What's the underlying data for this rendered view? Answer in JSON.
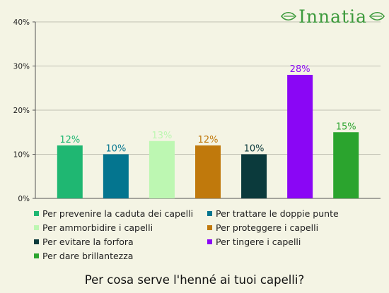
{
  "logo": {
    "text": "Innatia",
    "icon_left": "leaf-ornament-icon",
    "icon_right": "leaf-ornament-icon",
    "color": "#3c9a3c"
  },
  "chart_data": {
    "type": "bar",
    "title": "Per cosa serve l'henné ai tuoi capelli?",
    "xlabel": "",
    "ylabel": "",
    "ylim": [
      0,
      40
    ],
    "yticks": [
      "0%",
      "10%",
      "20%",
      "30%",
      "40%"
    ],
    "yticks_values": [
      0,
      10,
      20,
      30,
      40
    ],
    "grid": "horizontal",
    "legend_position": "bottom",
    "categories": [
      "Per prevenire la caduta dei capelli",
      "Per trattare le doppie punte",
      "Per ammorbidire i capelli",
      "Per proteggere i capelli",
      "Per evitare la forfora",
      "Per tingere i capelli",
      "Per dare brillantezza"
    ],
    "values": [
      12,
      10,
      13,
      12,
      10,
      28,
      15
    ],
    "data_labels": [
      "12%",
      "10%",
      "13%",
      "12%",
      "10%",
      "28%",
      "15%"
    ],
    "colors": [
      "#1fb772",
      "#04758f",
      "#bdf7b2",
      "#c0790c",
      "#0b3a3c",
      "#8a06f5",
      "#2ba42e"
    ]
  }
}
